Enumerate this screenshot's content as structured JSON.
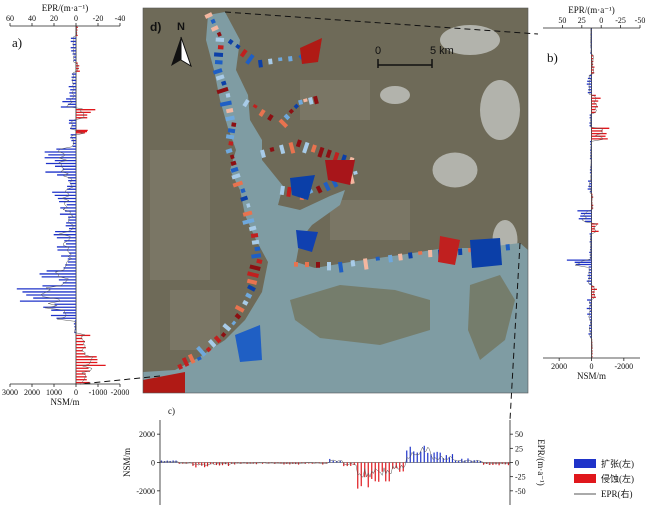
{
  "colors": {
    "expansion": "#1f33c9",
    "erosion": "#e0171c",
    "epr_line": "#555555",
    "water": "#7f9ca3",
    "land": "#6e6a58"
  },
  "map": {
    "label": "d)",
    "north_label": "N",
    "scale_labels": [
      "0",
      "5 km"
    ]
  },
  "legend": {
    "items": [
      {
        "label": "扩张(左)",
        "color": "#1f33c9",
        "kind": "box"
      },
      {
        "label": "侵蚀(左)",
        "color": "#e0171c",
        "kind": "box"
      },
      {
        "label": "EPR(右)",
        "color": "#555555",
        "kind": "line"
      }
    ]
  },
  "chart_data": [
    {
      "id": "a",
      "type": "bar",
      "orientation": "horizontal",
      "panel_label": "a)",
      "xlabel": "NSM/m",
      "x2label": "EPR/(m·a⁻¹)",
      "xlim": [
        3000,
        -2000
      ],
      "x_ticks": [
        "3000",
        "2000",
        "1000",
        "0",
        "-1000",
        "-2000"
      ],
      "x2lim": [
        60,
        -40
      ],
      "x2_ticks": [
        "60",
        "40",
        "20",
        "0",
        "-20",
        "-40"
      ],
      "segments": [
        {
          "from": 0.0,
          "to": 0.03,
          "nsm": -100
        },
        {
          "from": 0.03,
          "to": 0.1,
          "nsm": 250
        },
        {
          "from": 0.1,
          "to": 0.13,
          "nsm": -180
        },
        {
          "from": 0.13,
          "to": 0.2,
          "nsm": 350
        },
        {
          "from": 0.2,
          "to": 0.23,
          "nsm": 850
        },
        {
          "from": 0.23,
          "to": 0.26,
          "nsm": -900
        },
        {
          "from": 0.26,
          "to": 0.29,
          "nsm": 450
        },
        {
          "from": 0.29,
          "to": 0.3,
          "nsm": -600
        },
        {
          "from": 0.3,
          "to": 0.34,
          "nsm": 350
        },
        {
          "from": 0.34,
          "to": 0.42,
          "nsm": 1500
        },
        {
          "from": 0.42,
          "to": 0.46,
          "nsm": 700
        },
        {
          "from": 0.46,
          "to": 0.53,
          "nsm": 1100
        },
        {
          "from": 0.53,
          "to": 0.57,
          "nsm": 650
        },
        {
          "from": 0.57,
          "to": 0.63,
          "nsm": 1300
        },
        {
          "from": 0.63,
          "to": 0.68,
          "nsm": 900
        },
        {
          "from": 0.68,
          "to": 0.73,
          "nsm": 1700
        },
        {
          "from": 0.73,
          "to": 0.79,
          "nsm": 2700
        },
        {
          "from": 0.79,
          "to": 0.82,
          "nsm": 1500
        },
        {
          "from": 0.82,
          "to": 0.86,
          "nsm": 100
        },
        {
          "from": 0.86,
          "to": 0.92,
          "nsm": -800
        },
        {
          "from": 0.92,
          "to": 0.96,
          "nsm": -1400
        },
        {
          "from": 0.96,
          "to": 1.0,
          "nsm": -1100
        }
      ]
    },
    {
      "id": "b",
      "type": "bar",
      "orientation": "horizontal",
      "panel_label": "b)",
      "xlabel": "NSM/m",
      "x2label": "EPR/(m·a⁻¹)",
      "xlim": [
        3000,
        -3000
      ],
      "x_ticks": [
        "2000",
        "0",
        "-2000"
      ],
      "x2lim": [
        75,
        -50
      ],
      "x2_ticks": [
        "50",
        "25",
        "0",
        "-25",
        "-50"
      ],
      "segments": [
        {
          "from": 0.0,
          "to": 0.08,
          "nsm": 100
        },
        {
          "from": 0.08,
          "to": 0.14,
          "nsm": -250
        },
        {
          "from": 0.14,
          "to": 0.2,
          "nsm": 300
        },
        {
          "from": 0.2,
          "to": 0.26,
          "nsm": -600
        },
        {
          "from": 0.26,
          "to": 0.3,
          "nsm": 150
        },
        {
          "from": 0.3,
          "to": 0.34,
          "nsm": -1200
        },
        {
          "from": 0.34,
          "to": 0.46,
          "nsm": 100
        },
        {
          "from": 0.46,
          "to": 0.5,
          "nsm": 250
        },
        {
          "from": 0.5,
          "to": 0.55,
          "nsm": -120
        },
        {
          "from": 0.55,
          "to": 0.59,
          "nsm": 1000
        },
        {
          "from": 0.59,
          "to": 0.62,
          "nsm": -500
        },
        {
          "from": 0.62,
          "to": 0.7,
          "nsm": 150
        },
        {
          "from": 0.7,
          "to": 0.72,
          "nsm": 1800
        },
        {
          "from": 0.72,
          "to": 0.78,
          "nsm": 400
        },
        {
          "from": 0.78,
          "to": 0.82,
          "nsm": -350
        },
        {
          "from": 0.82,
          "to": 0.88,
          "nsm": 300
        },
        {
          "from": 0.88,
          "to": 0.94,
          "nsm": 200
        },
        {
          "from": 0.94,
          "to": 1.0,
          "nsm": -80
        }
      ]
    },
    {
      "id": "c",
      "type": "bar",
      "orientation": "vertical",
      "panel_label": "c)",
      "ylabel": "NSM/m",
      "y2label": "EPR/(m·a⁻¹)",
      "ylim": [
        -3000,
        3000
      ],
      "y_ticks": [
        "2000",
        "0",
        "-2000"
      ],
      "y2lim": [
        -75,
        75
      ],
      "y2_ticks": [
        "50",
        "25",
        "0",
        "-25",
        "-50"
      ],
      "segments": [
        {
          "from": 0.0,
          "to": 0.05,
          "nsm": 150
        },
        {
          "from": 0.05,
          "to": 0.09,
          "nsm": -100
        },
        {
          "from": 0.09,
          "to": 0.14,
          "nsm": -350
        },
        {
          "from": 0.14,
          "to": 0.2,
          "nsm": -250
        },
        {
          "from": 0.2,
          "to": 0.28,
          "nsm": -150
        },
        {
          "from": 0.28,
          "to": 0.35,
          "nsm": -100
        },
        {
          "from": 0.35,
          "to": 0.4,
          "nsm": -150
        },
        {
          "from": 0.4,
          "to": 0.44,
          "nsm": -100
        },
        {
          "from": 0.44,
          "to": 0.48,
          "nsm": -150
        },
        {
          "from": 0.48,
          "to": 0.52,
          "nsm": 300
        },
        {
          "from": 0.52,
          "to": 0.56,
          "nsm": -300
        },
        {
          "from": 0.56,
          "to": 0.6,
          "nsm": -2000
        },
        {
          "from": 0.6,
          "to": 0.63,
          "nsm": -1400
        },
        {
          "from": 0.63,
          "to": 0.66,
          "nsm": -1600
        },
        {
          "from": 0.66,
          "to": 0.7,
          "nsm": -900
        },
        {
          "from": 0.7,
          "to": 0.74,
          "nsm": 1200
        },
        {
          "from": 0.74,
          "to": 0.77,
          "nsm": 1900
        },
        {
          "from": 0.77,
          "to": 0.84,
          "nsm": 800
        },
        {
          "from": 0.84,
          "to": 0.92,
          "nsm": 300
        },
        {
          "from": 0.92,
          "to": 1.0,
          "nsm": -200
        }
      ]
    }
  ]
}
